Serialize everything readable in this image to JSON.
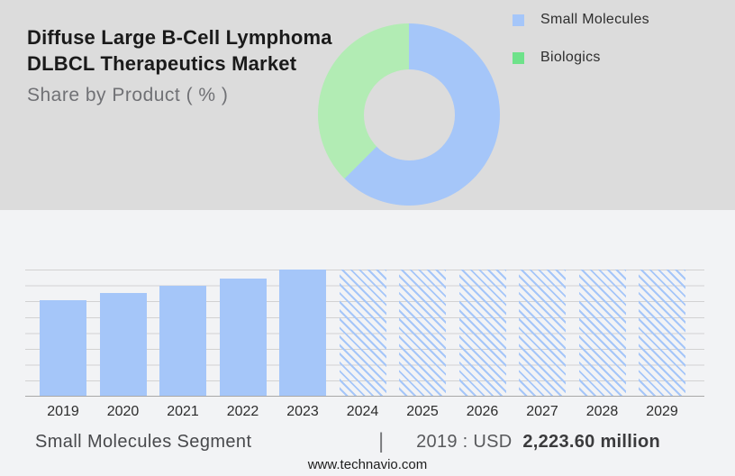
{
  "header": {
    "title_lines": [
      "Diffuse Large B-Cell Lymphoma",
      "DLBCL Therapeutics Market"
    ],
    "subtitle": "Share by Product ( % )"
  },
  "legend": {
    "position": "top-right",
    "items": [
      {
        "label": "Small Molecules",
        "color": "#a5c6f9"
      },
      {
        "label": "Biologics",
        "color": "#6ee28a"
      }
    ]
  },
  "chart_data": [
    {
      "type": "pie",
      "subtype": "donut",
      "title": "Share by Product ( % )",
      "labels": [
        "Small Molecules",
        "Biologics"
      ],
      "values_pct": [
        62.5,
        37.5
      ],
      "colors": [
        "#a5c6f9",
        "#b2ecb4"
      ],
      "start_angle_deg": 0,
      "direction": "clockwise",
      "donut_hole_ratio": 0.5,
      "legend_position": "right",
      "value_labels_shown": false
    },
    {
      "type": "bar",
      "title": "Small Molecules Segment",
      "categories": [
        "2019",
        "2020",
        "2021",
        "2022",
        "2023",
        "2024",
        "2025",
        "2026",
        "2027",
        "2028",
        "2029"
      ],
      "values_pct_of_max": [
        76,
        81.5,
        87.5,
        93,
        100,
        100,
        100,
        100,
        100,
        100,
        100
      ],
      "bar_styles": [
        "solid",
        "solid",
        "solid",
        "solid",
        "solid",
        "hatched",
        "hatched",
        "hatched",
        "hatched",
        "hatched",
        "hatched"
      ],
      "bar_color": "#a5c6f9",
      "xlabel": "",
      "ylabel": "",
      "y_axis": {
        "tick_labels_shown": false,
        "gridline_intervals": 8
      },
      "known_values": {
        "2019": "USD 2,223.60 million"
      },
      "grid": "horizontal"
    }
  ],
  "footer": {
    "segment_label": "Small Molecules Segment",
    "separator": "|",
    "value_prefix": "2019 : USD",
    "value_bold": "2,223.60 million",
    "website": "www.technavio.com"
  },
  "colors": {
    "top_background": "#dcdcdc",
    "bottom_background": "#f2f3f5",
    "primary_blue": "#a5c6f9",
    "donut_green": "#b2ecb4",
    "legend_green": "#6ee28a",
    "gridline": "#d2d2d2",
    "axis_line": "#a8a8a8"
  }
}
